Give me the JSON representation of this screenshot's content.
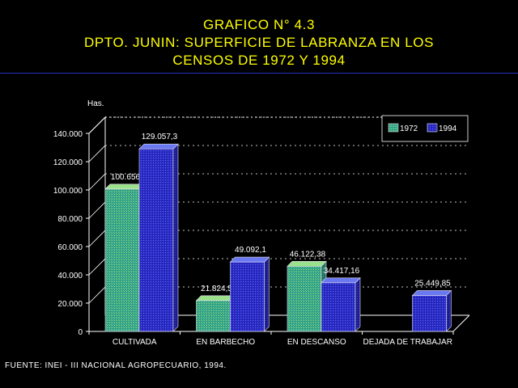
{
  "header": {
    "line1": "GRAFICO N° 4.3",
    "line2": "DPTO. JUNIN: SUPERFICIE DE LABRANZA EN LOS",
    "line3": "CENSOS DE 1972 Y 1994"
  },
  "footer": {
    "source": "FUENTE: INEI - III NACIONAL AGROPECUARIO, 1994."
  },
  "colors": {
    "title": "#ffff00",
    "series_1972": "#2e9e8e",
    "series_1994": "#2b2bc8"
  },
  "chart_data": {
    "type": "bar",
    "ylabel": "Has.",
    "ylim": [
      0,
      140000
    ],
    "yticks": [
      "0",
      "20.000",
      "40.000",
      "60.000",
      "80.000",
      "100.000",
      "120.000",
      "140.000"
    ],
    "categories": [
      "CULTIVADA",
      "EN BARBECHO",
      "EN DESCANSO",
      "DEJADA DE TRABAJAR"
    ],
    "series": [
      {
        "name": "1972",
        "values": [
          100656,
          21824.5,
          46122.38,
          null
        ],
        "labels": [
          "100.656",
          "21.824,5",
          "46.122,38",
          ""
        ]
      },
      {
        "name": "1994",
        "values": [
          129057.3,
          49092.1,
          34417.16,
          25449.85
        ],
        "labels": [
          "129.057,3",
          "49.092,1",
          "34.417,16",
          "25.449,85"
        ]
      }
    ],
    "legend": "top-right",
    "grid": true
  }
}
